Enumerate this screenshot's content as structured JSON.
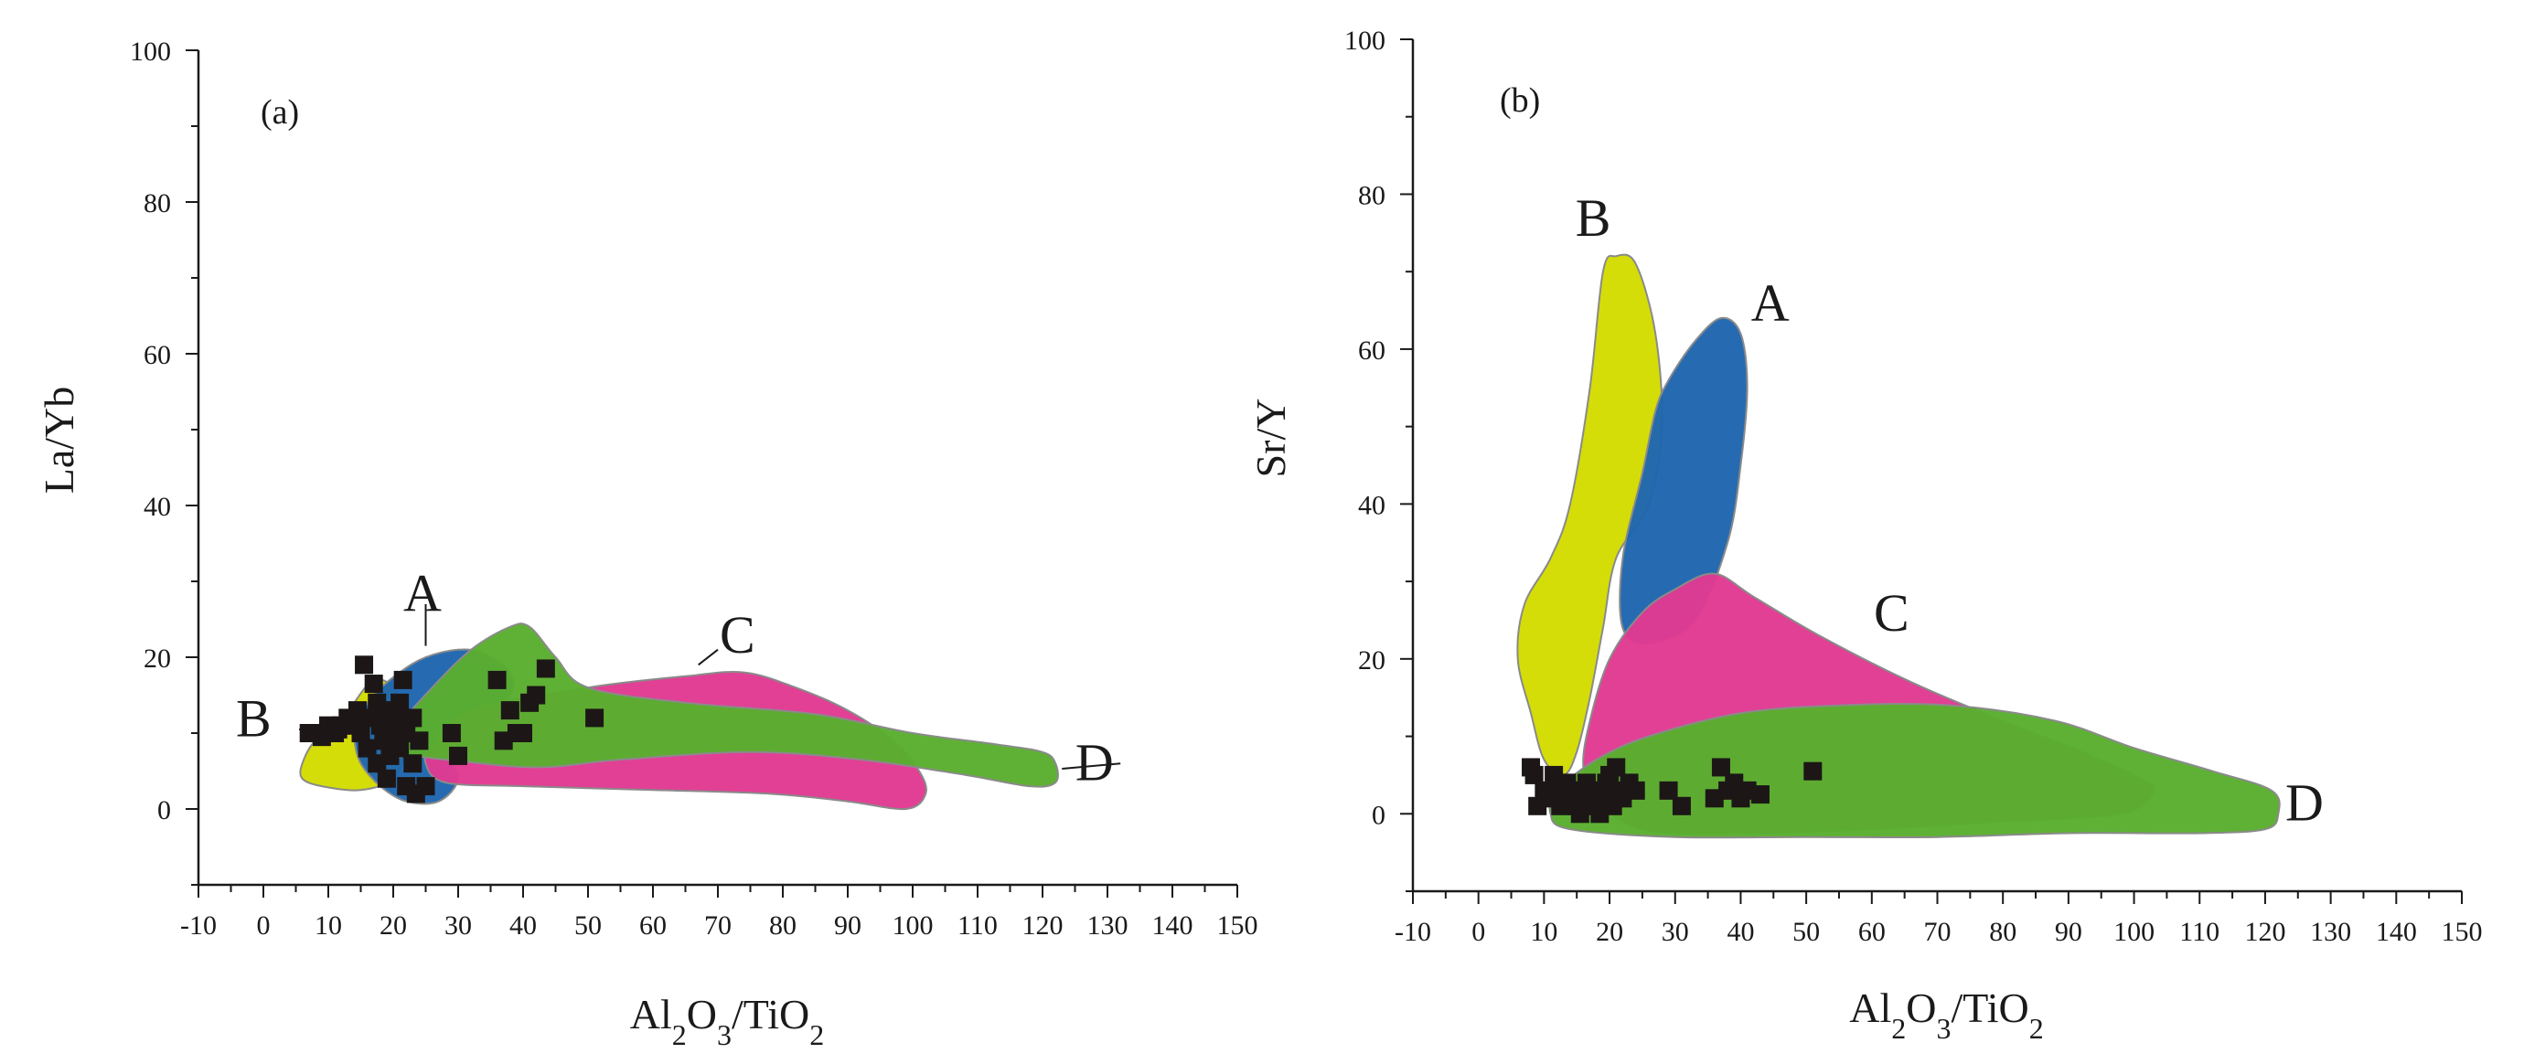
{
  "chart_data": [
    {
      "type": "scatter",
      "panel_label": "(a)",
      "xlabel": {
        "base": "Al",
        "s1": "2",
        "mid": "O",
        "s2": "3",
        "tail": "/TiO",
        "s3": "2"
      },
      "ylabel": "La/Yb",
      "xlim": [
        -10,
        150
      ],
      "ylim": [
        -10,
        100
      ],
      "xticks": [
        -10,
        0,
        10,
        20,
        30,
        40,
        50,
        60,
        70,
        80,
        90,
        100,
        110,
        120,
        130,
        140,
        150
      ],
      "yticks": [
        0,
        20,
        40,
        60,
        80,
        100
      ],
      "fields": [
        {
          "label": "B",
          "color": "#d4dc00",
          "points": [
            [
              6,
              6
            ],
            [
              8,
              9
            ],
            [
              12,
              11
            ],
            [
              14,
              14
            ],
            [
              17,
              17
            ],
            [
              20,
              16
            ],
            [
              22,
              12
            ],
            [
              22,
              8
            ],
            [
              20,
              4
            ],
            [
              15,
              2.5
            ],
            [
              9,
              3
            ],
            [
              6,
              4
            ]
          ],
          "label_at": [
            -1.5,
            12
          ],
          "leader": [
            [
              5.5,
              10.5
            ],
            [
              10,
              10
            ]
          ]
        },
        {
          "label": "A",
          "color": "#1f66b0",
          "points": [
            [
              14,
              11
            ],
            [
              17,
              15
            ],
            [
              21,
              18
            ],
            [
              25,
              20
            ],
            [
              30,
              21
            ],
            [
              34,
              20.5
            ],
            [
              38,
              18
            ],
            [
              38,
              15
            ],
            [
              33,
              11
            ],
            [
              28,
              8
            ],
            [
              30,
              4
            ],
            [
              27,
              1
            ],
            [
              22,
              1
            ],
            [
              18,
              3
            ],
            [
              15,
              6
            ],
            [
              14,
              9
            ]
          ],
          "label_at": [
            24.5,
            28.5
          ],
          "leader": [
            [
              25,
              27
            ],
            [
              25,
              21.5
            ]
          ]
        },
        {
          "label": "C",
          "color": "#e03a92",
          "points": [
            [
              26,
              8
            ],
            [
              32,
              13
            ],
            [
              50,
              16
            ],
            [
              65,
              17.5
            ],
            [
              74,
              18
            ],
            [
              82,
              16
            ],
            [
              90,
              13
            ],
            [
              97,
              9
            ],
            [
              101,
              5
            ],
            [
              102,
              2
            ],
            [
              99,
              0
            ],
            [
              90,
              1
            ],
            [
              78,
              2
            ],
            [
              60,
              2.5
            ],
            [
              40,
              3
            ],
            [
              28,
              3.5
            ],
            [
              25,
              6
            ]
          ],
          "label_at": [
            73,
            23
          ],
          "leader": [
            [
              70,
              21
            ],
            [
              67,
              19
            ]
          ]
        },
        {
          "label": "D",
          "color": "#5aae2e",
          "points": [
            [
              18,
              6
            ],
            [
              21,
              11
            ],
            [
              26,
              16
            ],
            [
              32,
              21
            ],
            [
              38,
              24
            ],
            [
              41,
              24
            ],
            [
              45,
              20
            ],
            [
              50,
              16
            ],
            [
              65,
              14
            ],
            [
              85,
              12.5
            ],
            [
              100,
              10
            ],
            [
              113,
              8.5
            ],
            [
              120,
              7.5
            ],
            [
              122,
              6
            ],
            [
              122,
              3.5
            ],
            [
              118,
              3
            ],
            [
              108,
              4.5
            ],
            [
              92,
              6.5
            ],
            [
              75,
              7.5
            ],
            [
              55,
              6.5
            ],
            [
              42,
              5.5
            ],
            [
              28,
              6.5
            ],
            [
              22,
              7
            ]
          ],
          "label_at": [
            128,
            6.2
          ],
          "leader": [
            [
              123,
              5.3
            ],
            [
              132,
              6
            ]
          ]
        }
      ],
      "samples": [
        [
          7,
          10
        ],
        [
          8,
          10
        ],
        [
          9,
          9.5
        ],
        [
          10,
          11
        ],
        [
          11,
          10
        ],
        [
          11.5,
          10.5
        ],
        [
          12,
          11
        ],
        [
          13,
          12
        ],
        [
          14,
          11
        ],
        [
          14.5,
          13
        ],
        [
          15,
          10
        ],
        [
          15.5,
          19
        ],
        [
          16,
          8
        ],
        [
          16.5,
          12
        ],
        [
          17,
          16.5
        ],
        [
          17.5,
          14
        ],
        [
          17.5,
          6
        ],
        [
          18,
          11
        ],
        [
          18.5,
          9
        ],
        [
          19,
          13
        ],
        [
          19,
          4
        ],
        [
          19.5,
          7
        ],
        [
          20,
          10
        ],
        [
          20.5,
          12
        ],
        [
          21,
          14
        ],
        [
          21,
          8
        ],
        [
          21.5,
          17
        ],
        [
          22,
          10
        ],
        [
          22,
          3
        ],
        [
          23,
          12
        ],
        [
          23,
          6
        ],
        [
          23.5,
          2
        ],
        [
          24,
          9
        ],
        [
          25,
          3
        ],
        [
          29,
          10
        ],
        [
          30,
          7
        ],
        [
          36,
          17
        ],
        [
          37,
          9
        ],
        [
          38,
          13
        ],
        [
          39,
          10
        ],
        [
          40,
          10
        ],
        [
          41,
          14
        ],
        [
          42,
          15
        ],
        [
          43.5,
          18.5
        ],
        [
          51,
          12
        ]
      ]
    },
    {
      "type": "scatter",
      "panel_label": "(b)",
      "xlabel": {
        "base": "Al",
        "s1": "2",
        "mid": "O",
        "s2": "3",
        "tail": "/TiO",
        "s3": "2"
      },
      "ylabel": "Sr/Y",
      "xlim": [
        -10,
        150
      ],
      "ylim": [
        -10,
        100
      ],
      "xticks": [
        -10,
        0,
        10,
        20,
        30,
        40,
        50,
        60,
        70,
        80,
        90,
        100,
        110,
        120,
        130,
        140,
        150
      ],
      "yticks": [
        0,
        20,
        40,
        60,
        80,
        100
      ],
      "fields": [
        {
          "label": "B",
          "color": "#d4dc00",
          "points": [
            [
              19,
              70
            ],
            [
              21,
              72
            ],
            [
              24,
              71
            ],
            [
              27,
              62
            ],
            [
              28,
              50
            ],
            [
              26,
              40
            ],
            [
              21,
              33
            ],
            [
              19,
              24
            ],
            [
              17,
              15
            ],
            [
              15,
              8
            ],
            [
              13,
              5
            ],
            [
              10,
              7
            ],
            [
              8,
              13
            ],
            [
              6,
              20
            ],
            [
              7,
              27
            ],
            [
              11,
              33
            ],
            [
              14,
              40
            ],
            [
              17,
              55
            ]
          ],
          "label_at": [
            17.5,
            77
          ],
          "leader": null
        },
        {
          "label": "A",
          "color": "#1f66b0",
          "points": [
            [
              29,
              56
            ],
            [
              33,
              61
            ],
            [
              37,
              64
            ],
            [
              40,
              62
            ],
            [
              41,
              55
            ],
            [
              40,
              45
            ],
            [
              38,
              35
            ],
            [
              33,
              25
            ],
            [
              26,
              22
            ],
            [
              22,
              24
            ],
            [
              22,
              33
            ],
            [
              25,
              44
            ],
            [
              27,
              52
            ]
          ],
          "label_at": [
            44.5,
            66
          ],
          "leader": null
        },
        {
          "label": "C",
          "color": "#e03a92",
          "points": [
            [
              20,
              20
            ],
            [
              25,
              26
            ],
            [
              30,
              29
            ],
            [
              36,
              31
            ],
            [
              42,
              28
            ],
            [
              52,
              23
            ],
            [
              66,
              17
            ],
            [
              80,
              12
            ],
            [
              92,
              8
            ],
            [
              100,
              5
            ],
            [
              103,
              3
            ],
            [
              98,
              0
            ],
            [
              80,
              -1
            ],
            [
              60,
              -2
            ],
            [
              40,
              -2.5
            ],
            [
              25,
              -2
            ],
            [
              18,
              2
            ],
            [
              16,
              6
            ],
            [
              17,
              12
            ]
          ],
          "label_at": [
            63,
            26
          ],
          "leader": null
        },
        {
          "label": "D",
          "color": "#5aae2e",
          "points": [
            [
              12,
              3
            ],
            [
              18,
              7
            ],
            [
              26,
              10
            ],
            [
              40,
              13
            ],
            [
              55,
              14
            ],
            [
              72,
              14
            ],
            [
              88,
              12
            ],
            [
              100,
              8.5
            ],
            [
              112,
              5.5
            ],
            [
              121,
              3
            ],
            [
              122,
              0
            ],
            [
              120,
              -2
            ],
            [
              110,
              -2.5
            ],
            [
              90,
              -2.5
            ],
            [
              70,
              -3
            ],
            [
              50,
              -3
            ],
            [
              30,
              -3
            ],
            [
              14,
              -2
            ],
            [
              11,
              0
            ]
          ],
          "label_at": [
            126,
            1.5
          ],
          "leader": null
        }
      ],
      "samples": [
        [
          8,
          6
        ],
        [
          8.5,
          5
        ],
        [
          9,
          1
        ],
        [
          10,
          3
        ],
        [
          11,
          2
        ],
        [
          11.5,
          5
        ],
        [
          12,
          3
        ],
        [
          12.5,
          1
        ],
        [
          13,
          2
        ],
        [
          13.5,
          4
        ],
        [
          14,
          2
        ],
        [
          14.5,
          3
        ],
        [
          15,
          1
        ],
        [
          15.5,
          0
        ],
        [
          16,
          3
        ],
        [
          16.5,
          4
        ],
        [
          17,
          2
        ],
        [
          17.5,
          1
        ],
        [
          18,
          3
        ],
        [
          18.5,
          0
        ],
        [
          19,
          2
        ],
        [
          19.5,
          4
        ],
        [
          20,
          5
        ],
        [
          20.5,
          1
        ],
        [
          21,
          6
        ],
        [
          21.5,
          3
        ],
        [
          22,
          2
        ],
        [
          23,
          4
        ],
        [
          24,
          3
        ],
        [
          29,
          3
        ],
        [
          31,
          1
        ],
        [
          36,
          2
        ],
        [
          37,
          6
        ],
        [
          38,
          3
        ],
        [
          39,
          4
        ],
        [
          40,
          2
        ],
        [
          41,
          3
        ],
        [
          43,
          2.5
        ],
        [
          51,
          5.5
        ]
      ]
    }
  ],
  "style": {
    "axis_color": "#1a1a1a",
    "field_stroke": "#8a8a8a",
    "marker_color": "#1c1716"
  }
}
